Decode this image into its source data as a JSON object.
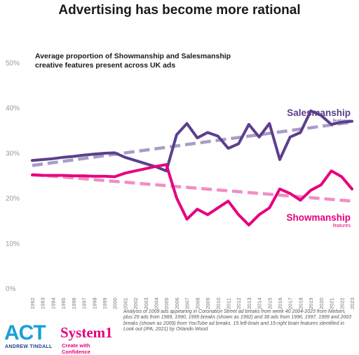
{
  "page": {
    "title": "Advertising has become more rational",
    "source_note": "Analysis of 1009 ads appearing in Coronation Street ad breaks from week 40 2004-2023 from Nielsen, plus 29 ads from 1989, 1990, 1995 breaks (shown as 1992) and 38 ads from 1996, 1997, 1999 and 2003 breaks (shown as 2009) from YouTube ad breaks. 15 left-brain and 15-right brain features identified in Look out (IPA, 2021) by Orlando Wood."
  },
  "logos": {
    "act": "ACT",
    "act_sub": "ANDREW TINDALL",
    "system1": "System1",
    "system1_sub": "Create with Confidence"
  },
  "colors": {
    "salesmanship": "#5b3f8c",
    "salesmanship_trend": "#a99cc6",
    "showmanship": "#e6007e",
    "showmanship_trend": "#f28ec4"
  },
  "chart_data": {
    "type": "line",
    "subtitle": "Average proportion of Showmanship and Salesmanship creative features present across UK ads",
    "xlabel": "",
    "ylabel": "",
    "x": [
      "1992",
      "1993",
      "1994",
      "1995",
      "1996",
      "1997",
      "1998",
      "1999",
      "2000",
      "2001",
      "2002",
      "2003",
      "2004",
      "2005",
      "2006",
      "2007",
      "2008",
      "2009",
      "2010",
      "2011",
      "2012",
      "2013",
      "2014",
      "2015",
      "2016",
      "2017",
      "2018",
      "2019",
      "2020",
      "2021",
      "2022",
      "2023"
    ],
    "ylim": [
      0,
      50
    ],
    "yticks": [
      0,
      10,
      20,
      30,
      40,
      50
    ],
    "ytick_labels": [
      "0%",
      "10%",
      "20%",
      "30%",
      "40%",
      "50%"
    ],
    "grid": false,
    "series": [
      {
        "name": "Salesmanship",
        "label_sub": "features",
        "values": [
          28.3,
          28.5,
          28.7,
          29.0,
          29.2,
          29.5,
          29.7,
          29.9,
          30.0,
          29.0,
          28.3,
          27.6,
          26.9,
          26.0,
          34.0,
          36.5,
          33.3,
          34.5,
          33.7,
          31.0,
          32.0,
          36.3,
          33.5,
          36.5,
          28.5,
          33.5,
          34.5,
          39.3,
          38.3,
          36.3,
          36.8,
          37.0
        ],
        "trend": [
          27.2,
          36.8
        ]
      },
      {
        "name": "Showmanship",
        "label_sub": "features",
        "values": [
          25.1,
          25.0,
          25.0,
          25.0,
          24.9,
          24.9,
          24.8,
          24.8,
          24.7,
          25.5,
          26.0,
          26.5,
          27.0,
          27.4,
          20.0,
          15.3,
          17.5,
          16.3,
          17.8,
          19.3,
          16.3,
          14.0,
          16.3,
          17.8,
          22.0,
          21.0,
          19.5,
          21.7,
          22.9,
          26.0,
          24.7,
          22.0
        ],
        "trend": [
          25.2,
          19.3
        ]
      }
    ]
  }
}
